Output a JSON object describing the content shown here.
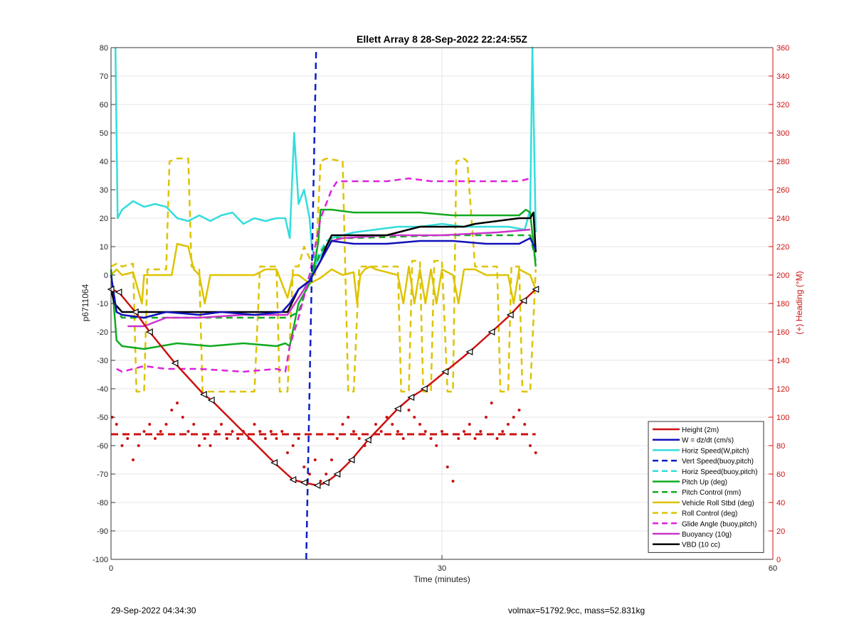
{
  "chart_data": {
    "type": "line",
    "title": "Ellett Array 8 28-Sep-2022 22:24:55Z",
    "xlabel": "Time (minutes)",
    "ylabel": "p6711064",
    "ylabel_right": "(+) Heading (°M)",
    "xlim": [
      0,
      60
    ],
    "ylim": [
      -100,
      80
    ],
    "ylim_right": [
      0,
      360
    ],
    "x_ticks": [
      "0",
      "30",
      "60"
    ],
    "y_ticks": [
      "-100",
      "-90",
      "-80",
      "-70",
      "-60",
      "-50",
      "-40",
      "-30",
      "-20",
      "-10",
      "0",
      "10",
      "20",
      "30",
      "40",
      "50",
      "60",
      "70",
      "80"
    ],
    "y_ticks_right": [
      "0",
      "20",
      "40",
      "60",
      "80",
      "100",
      "120",
      "140",
      "160",
      "180",
      "200",
      "220",
      "240",
      "260",
      "280",
      "300",
      "320",
      "340",
      "360"
    ],
    "grid": true,
    "legend_position": "bottom-right",
    "series": [
      {
        "name": "Height (2m)",
        "color": "#cc1111",
        "style": "solid-markers",
        "x": [
          0,
          0.7,
          2.2,
          3.5,
          5.8,
          8.4,
          9.1,
          14.8,
          16.5,
          17.5,
          18.7,
          19.5,
          20.5,
          21.8,
          23.3,
          26.0,
          27.2,
          28.4,
          30.3,
          32.5,
          34.5,
          36.2,
          37.4,
          38.5
        ],
        "y": [
          -5,
          -6,
          -13,
          -20,
          -31,
          -42,
          -44,
          -66,
          -72,
          -73,
          -74,
          -73,
          -70,
          -65,
          -58,
          -47,
          -43,
          -40,
          -34,
          -27,
          -20,
          -14,
          -9,
          -5
        ]
      },
      {
        "name": "W = dz/dt (cm/s)",
        "color": "#1111bb",
        "style": "solid",
        "x": [
          0,
          0.5,
          1,
          3,
          5,
          8,
          10,
          13,
          15.5,
          16.2,
          17,
          18,
          19,
          20,
          22,
          25,
          28,
          31,
          34,
          37,
          38,
          38.5
        ],
        "y": [
          0,
          -13,
          -14,
          -15,
          -13,
          -14,
          -13,
          -14,
          -13,
          -10,
          -5,
          -2,
          5,
          12,
          11,
          11,
          12,
          12,
          11,
          11,
          13,
          9
        ]
      },
      {
        "name": "Horiz Speed(W,pitch)",
        "color": "#33dddd",
        "style": "solid",
        "x": [
          0.4,
          0.6,
          1,
          2,
          3,
          4,
          5,
          6,
          7,
          8,
          9,
          10,
          11,
          12,
          13,
          14,
          15,
          15.8,
          16.2,
          16.6,
          17,
          17.5,
          18,
          18.2,
          18.6,
          19,
          19.5,
          20,
          21,
          22,
          24,
          26,
          28,
          30,
          32,
          34,
          36,
          37.5,
          38,
          38.2,
          38.5
        ],
        "y": [
          80,
          20,
          23,
          26,
          24,
          25,
          24,
          20,
          19,
          21,
          19,
          21,
          22,
          18,
          20,
          19,
          20,
          20,
          13,
          50,
          25,
          30,
          20,
          10,
          4,
          7,
          10,
          13,
          14,
          15,
          16,
          17,
          17,
          18,
          17,
          17,
          17,
          16,
          23,
          80,
          15
        ]
      },
      {
        "name": "Vert Speed(buoy,pitch)",
        "color": "#0a1ec8",
        "style": "dashed",
        "x": [
          17.7,
          18.0,
          18.3,
          18.6
        ],
        "y": [
          -100,
          -40,
          20,
          80
        ]
      },
      {
        "name": "Horiz Speed(buoy,pitch)",
        "color": "#33dddd",
        "style": "dashed",
        "x": [
          17.5,
          18.5,
          19.5,
          20.5
        ],
        "y": [
          -5,
          5,
          12,
          14
        ]
      },
      {
        "name": "Pitch Up (deg)",
        "color": "#11aa22",
        "style": "solid",
        "x": [
          0,
          0.5,
          1,
          3,
          6,
          9,
          12,
          15,
          15.8,
          16.2,
          17,
          18,
          18.5,
          18.8,
          19,
          20,
          22,
          25,
          28,
          31,
          34,
          37,
          37.6,
          38,
          38.5
        ],
        "y": [
          2,
          -23,
          -25,
          -26,
          -24,
          -25,
          -24,
          -25,
          -24,
          -25,
          -10,
          -3,
          5,
          12,
          23,
          23,
          22,
          22,
          22,
          21,
          21,
          21,
          23,
          22,
          3
        ]
      },
      {
        "name": "Pitch Control (mm)",
        "color": "#11aa22",
        "style": "dashed",
        "x": [
          0,
          0.5,
          1,
          16,
          17,
          18,
          19,
          20,
          22,
          30,
          38,
          38.5
        ],
        "y": [
          0,
          -13,
          -15,
          -15,
          -13,
          -2,
          8,
          13,
          13,
          14,
          14,
          5
        ]
      },
      {
        "name": "Vehicle Roll Stbd (deg)",
        "color": "#ddc300",
        "style": "solid",
        "x": [
          0,
          0.5,
          1,
          2,
          2.8,
          3,
          5.5,
          6,
          7,
          7.5,
          8,
          8.5,
          9,
          13,
          14,
          15,
          16,
          16.5,
          17,
          18,
          19,
          20,
          21,
          22,
          22.3,
          22.6,
          23,
          23.5,
          24,
          26,
          26.5,
          27,
          27.5,
          28,
          28.5,
          29,
          29.5,
          30,
          31,
          31.5,
          32,
          33,
          34,
          36,
          36.5,
          37,
          38,
          38.5
        ],
        "y": [
          0,
          2,
          0,
          1,
          -10,
          0,
          0,
          11,
          10,
          2,
          0,
          -10,
          0,
          0,
          2,
          2,
          -8,
          0,
          0,
          -3,
          -1,
          2,
          0,
          1,
          -10,
          0,
          2,
          3,
          2,
          0,
          -10,
          3,
          -10,
          2,
          -10,
          2,
          -10,
          2,
          0,
          -10,
          2,
          2,
          0,
          0,
          -10,
          2,
          0,
          -5
        ]
      },
      {
        "name": "Roll Control (deg)",
        "color": "#ddc300",
        "style": "dashed",
        "x": [
          0,
          0.5,
          1,
          2,
          2.3,
          3,
          3.3,
          5,
          5.3,
          6,
          7,
          7.3,
          8,
          8.3,
          9,
          13,
          13.5,
          15,
          15.3,
          16,
          16.5,
          17,
          17.5,
          18,
          18.5,
          19,
          19.5,
          21,
          21.5,
          22,
          22.5,
          23,
          26,
          26.3,
          27,
          27.3,
          28,
          28.3,
          29,
          29.3,
          30,
          30.5,
          31,
          31.3,
          32,
          32.3,
          33,
          33.3,
          35,
          35.3,
          36,
          36.3,
          37,
          37.3,
          38,
          38.5
        ],
        "y": [
          3,
          4,
          3,
          4,
          -41,
          -41,
          2,
          2,
          40,
          41,
          41,
          3,
          2,
          -41,
          -41,
          -41,
          3,
          3,
          -41,
          -41,
          3,
          3,
          10,
          6,
          0,
          40,
          41,
          40,
          -41,
          -41,
          3,
          3,
          3,
          -41,
          -41,
          5,
          5,
          -41,
          -41,
          5,
          5,
          -41,
          -41,
          40,
          41,
          40,
          3,
          3,
          3,
          -41,
          -41,
          3,
          3,
          -41,
          -41,
          2
        ]
      },
      {
        "name": "Glide Angle (buoy,pitch)",
        "color": "#dd22dd",
        "style": "dashed",
        "x": [
          0.5,
          1,
          3,
          5,
          8,
          12,
          15,
          15.8,
          16.2,
          17,
          18,
          19,
          20,
          20.5,
          21,
          23,
          25,
          27,
          29,
          31,
          33,
          35,
          37,
          38
        ],
        "y": [
          -33,
          -34,
          -32,
          -33,
          -33,
          -34,
          -33,
          -34,
          -25,
          -15,
          0,
          20,
          30,
          33,
          33,
          33,
          33,
          34,
          33,
          33,
          33,
          33,
          33,
          34
        ]
      },
      {
        "name": "Buoyancy (10g)",
        "color": "#cc33cc",
        "style": "solid",
        "x": [
          1.5,
          3,
          5,
          8,
          12,
          15,
          16,
          17,
          18,
          19,
          20,
          21,
          25,
          30,
          35,
          38
        ],
        "y": [
          -18,
          -18,
          -15,
          -15,
          -14,
          -14,
          -14,
          -8,
          -2,
          5,
          12,
          13,
          14,
          14,
          15,
          16
        ]
      },
      {
        "name": "VBD (10 cc)",
        "color": "#000000",
        "style": "solid",
        "x": [
          0,
          0.3,
          1,
          2,
          16,
          17,
          18,
          19,
          19.5,
          20,
          22,
          25,
          26,
          28,
          29,
          32,
          33,
          35,
          37,
          38,
          38.3,
          38.5
        ],
        "y": [
          -5,
          -10,
          -13,
          -13,
          -13,
          -5,
          -2,
          5,
          10,
          14,
          14,
          14,
          15,
          17,
          17,
          17,
          18,
          19,
          20,
          20,
          22,
          8
        ]
      }
    ],
    "heading_dots": {
      "color": "#cc1111",
      "x": [
        0.1,
        0.5,
        1.0,
        1.5,
        2.0,
        2.5,
        3.0,
        3.5,
        4.0,
        4.5,
        5.0,
        5.5,
        6.0,
        6.5,
        7.0,
        7.5,
        8.0,
        8.5,
        9.0,
        9.5,
        10.0,
        10.5,
        11.0,
        11.5,
        12.0,
        12.5,
        13.0,
        13.5,
        14.0,
        14.5,
        15.0,
        15.5,
        16.0,
        16.5,
        17.0,
        17.5,
        18.0,
        18.5,
        19.0,
        19.5,
        20.0,
        20.5,
        21.0,
        21.5,
        22.0,
        22.5,
        23.0,
        23.5,
        24.0,
        24.5,
        25.0,
        25.5,
        26.0,
        26.5,
        27.0,
        27.5,
        28.0,
        28.5,
        29.0,
        29.5,
        30.0,
        30.5,
        31.0,
        31.5,
        32.0,
        32.5,
        33.0,
        33.5,
        34.0,
        34.5,
        35.0,
        35.5,
        36.0,
        36.5,
        37.0,
        37.5,
        38.0,
        38.5
      ],
      "y": [
        100,
        95,
        80,
        85,
        70,
        80,
        90,
        95,
        85,
        90,
        95,
        105,
        110,
        100,
        90,
        95,
        80,
        85,
        80,
        90,
        95,
        85,
        90,
        85,
        90,
        85,
        95,
        90,
        85,
        90,
        85,
        90,
        75,
        80,
        85,
        65,
        60,
        70,
        55,
        60,
        70,
        85,
        95,
        100,
        90,
        85,
        80,
        85,
        95,
        90,
        100,
        95,
        90,
        85,
        105,
        100,
        95,
        90,
        85,
        80,
        90,
        65,
        55,
        85,
        90,
        95,
        85,
        90,
        100,
        110,
        85,
        90,
        95,
        100,
        105,
        95,
        80,
        75
      ]
    },
    "heading_mean": {
      "value": 88,
      "color": "#cc1111",
      "style": "dashed"
    }
  },
  "footer": {
    "left": "29-Sep-2022 04:34:30",
    "right": "volmax=51792.9cc, mass=52.831kg"
  }
}
